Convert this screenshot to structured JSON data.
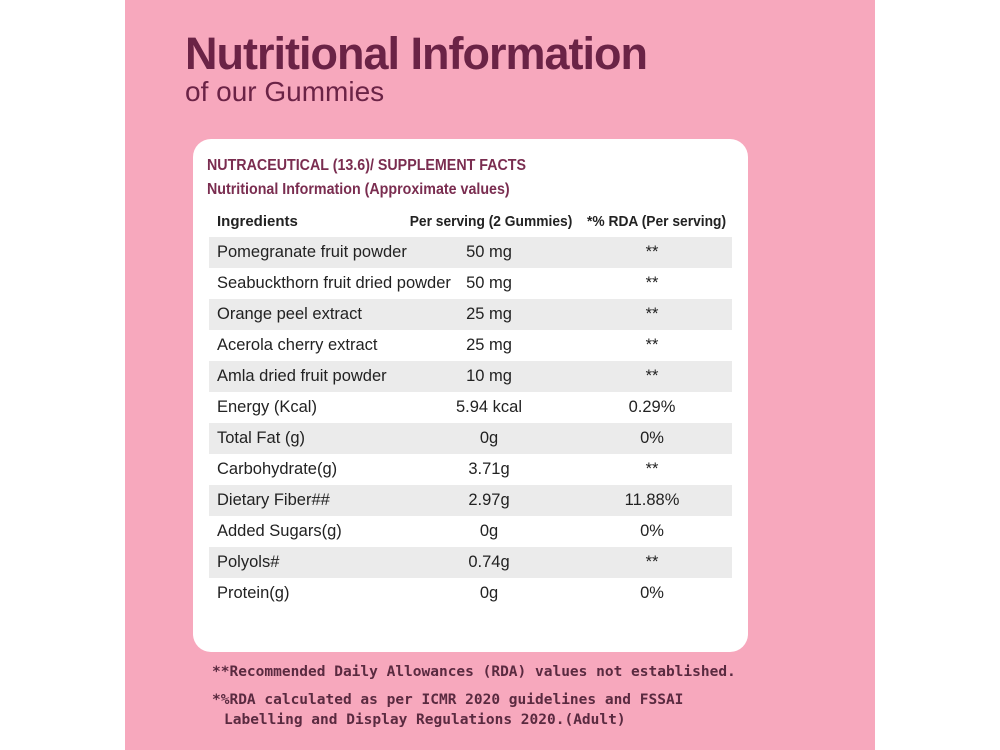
{
  "header": {
    "title": "Nutritional Information",
    "subtitle": "of our Gummies"
  },
  "card": {
    "heading1": "NUTRACEUTICAL (13.6)/ SUPPLEMENT FACTS",
    "heading2": "Nutritional Information (Approximate values)",
    "columns": [
      "Ingredients",
      "Per serving (2 Gummies)",
      "*% RDA (Per serving)"
    ],
    "rows": [
      {
        "name": "Pomegranate fruit powder",
        "serving": "50 mg",
        "rda": "**"
      },
      {
        "name": "Seabuckthorn fruit dried powder",
        "serving": "50 mg",
        "rda": "**"
      },
      {
        "name": "Orange peel extract",
        "serving": "25 mg",
        "rda": "**"
      },
      {
        "name": "Acerola cherry extract",
        "serving": "25 mg",
        "rda": "**"
      },
      {
        "name": "Amla dried fruit powder",
        "serving": "10 mg",
        "rda": "**"
      },
      {
        "name": "Energy (Kcal)",
        "serving": "5.94 kcal",
        "rda": "0.29%"
      },
      {
        "name": "Total Fat (g)",
        "serving": "0g",
        "rda": "0%"
      },
      {
        "name": "Carbohydrate(g)",
        "serving": "3.71g",
        "rda": "**"
      },
      {
        "name": "Dietary Fiber##",
        "serving": "2.97g",
        "rda": "11.88%"
      },
      {
        "name": "Added Sugars(g)",
        "serving": "0g",
        "rda": "0%"
      },
      {
        "name": "Polyols#",
        "serving": "0.74g",
        "rda": "**"
      },
      {
        "name": "Protein(g)",
        "serving": "0g",
        "rda": "0%"
      }
    ]
  },
  "footnotes": {
    "line1": "**Recommended Daily Allowances (RDA) values not established.",
    "line2": "*%RDA calculated as per ICMR 2020 guidelines and FSSAI",
    "line3": "Labelling and Display Regulations 2020.(Adult)"
  },
  "colors": {
    "panel": "#f7a8bd",
    "title": "#6b2346",
    "heading": "#7a2d50",
    "row_shade": "#ebebeb"
  }
}
